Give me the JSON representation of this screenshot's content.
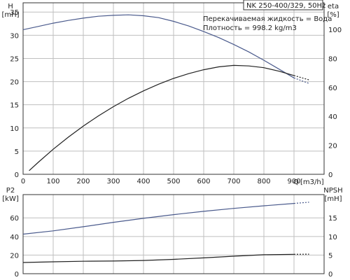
{
  "pump": {
    "model": "NK 250-400/329, 50Hz",
    "liquid": "Перекачиваемая жидкость = Вода",
    "density": "Плотность = 998.2 kg/m3"
  },
  "colors": {
    "head": "#4a5a8c",
    "eta": "#222222",
    "p2": "#4a5a8c",
    "npsh": "#222222"
  },
  "chart_data": [
    {
      "type": "line",
      "name": "head-efficiency",
      "x_axis": {
        "label": "Q",
        "unit": "[m3/h]",
        "range": [
          0,
          1000
        ],
        "ticks": [
          0,
          100,
          200,
          300,
          400,
          500,
          600,
          700,
          800,
          900
        ]
      },
      "y_left": {
        "label": "H",
        "unit": "[mH]",
        "range": [
          0,
          37
        ],
        "ticks": [
          0,
          5,
          10,
          15,
          20,
          25,
          30,
          35
        ]
      },
      "y_right": {
        "label": "eta",
        "unit": "[%]",
        "range": [
          0,
          118.4
        ],
        "ticks": [
          0,
          20,
          40,
          60,
          80,
          100
        ]
      },
      "grid": true,
      "series": [
        {
          "key": "head",
          "axis": "left",
          "x": [
            0,
            50,
            100,
            150,
            200,
            250,
            300,
            350,
            400,
            450,
            500,
            550,
            600,
            650,
            700,
            750,
            800,
            850,
            900
          ],
          "y": [
            31.2,
            31.9,
            32.6,
            33.2,
            33.7,
            34.1,
            34.3,
            34.4,
            34.2,
            33.8,
            33.0,
            32.0,
            30.8,
            29.5,
            28.0,
            26.4,
            24.6,
            22.7,
            20.8
          ],
          "extrap_x": [
            900,
            950
          ],
          "extrap_y": [
            20.8,
            19.6
          ]
        },
        {
          "key": "eta",
          "axis": "right",
          "x": [
            20,
            50,
            100,
            150,
            200,
            250,
            300,
            350,
            400,
            450,
            500,
            550,
            600,
            650,
            700,
            750,
            800,
            850,
            900
          ],
          "y": [
            2.5,
            8.2,
            17.3,
            25.6,
            33.3,
            40.3,
            46.7,
            52.5,
            57.6,
            62.2,
            66.2,
            69.5,
            72.2,
            74.2,
            75.2,
            74.8,
            73.6,
            71.2,
            68.2
          ],
          "extrap_x": [
            900,
            950
          ],
          "extrap_y": [
            68.2,
            65.2
          ]
        }
      ]
    },
    {
      "type": "line",
      "name": "power-npsh",
      "x_axis": {
        "range": [
          0,
          1000
        ],
        "ticks": [
          0,
          100,
          200,
          300,
          400,
          500,
          600,
          700,
          800,
          900
        ]
      },
      "y_left": {
        "label": "P2",
        "unit": "[kW]",
        "range": [
          0,
          85
        ],
        "ticks": [
          0,
          20,
          40,
          60
        ]
      },
      "y_right": {
        "label": "NPSH",
        "unit": "[mH]",
        "range": [
          0,
          21.25
        ],
        "ticks": [
          0,
          5,
          10,
          15
        ]
      },
      "grid": true,
      "series": [
        {
          "key": "p2",
          "axis": "left",
          "x": [
            0,
            100,
            200,
            300,
            400,
            500,
            600,
            700,
            800,
            900
          ],
          "y": [
            42.5,
            46.0,
            50.5,
            55.2,
            59.5,
            63.5,
            67.0,
            70.2,
            73.0,
            75.5
          ],
          "extrap_x": [
            900,
            950
          ],
          "extrap_y": [
            75.5,
            76.8
          ]
        },
        {
          "key": "npsh",
          "axis": "right",
          "x": [
            0,
            100,
            200,
            300,
            400,
            500,
            600,
            700,
            800,
            900
          ],
          "y": [
            3.0,
            3.2,
            3.35,
            3.4,
            3.55,
            3.85,
            4.25,
            4.7,
            5.1,
            5.2
          ],
          "extrap_x": [
            900,
            950
          ],
          "extrap_y": [
            5.2,
            5.25
          ]
        }
      ]
    }
  ]
}
